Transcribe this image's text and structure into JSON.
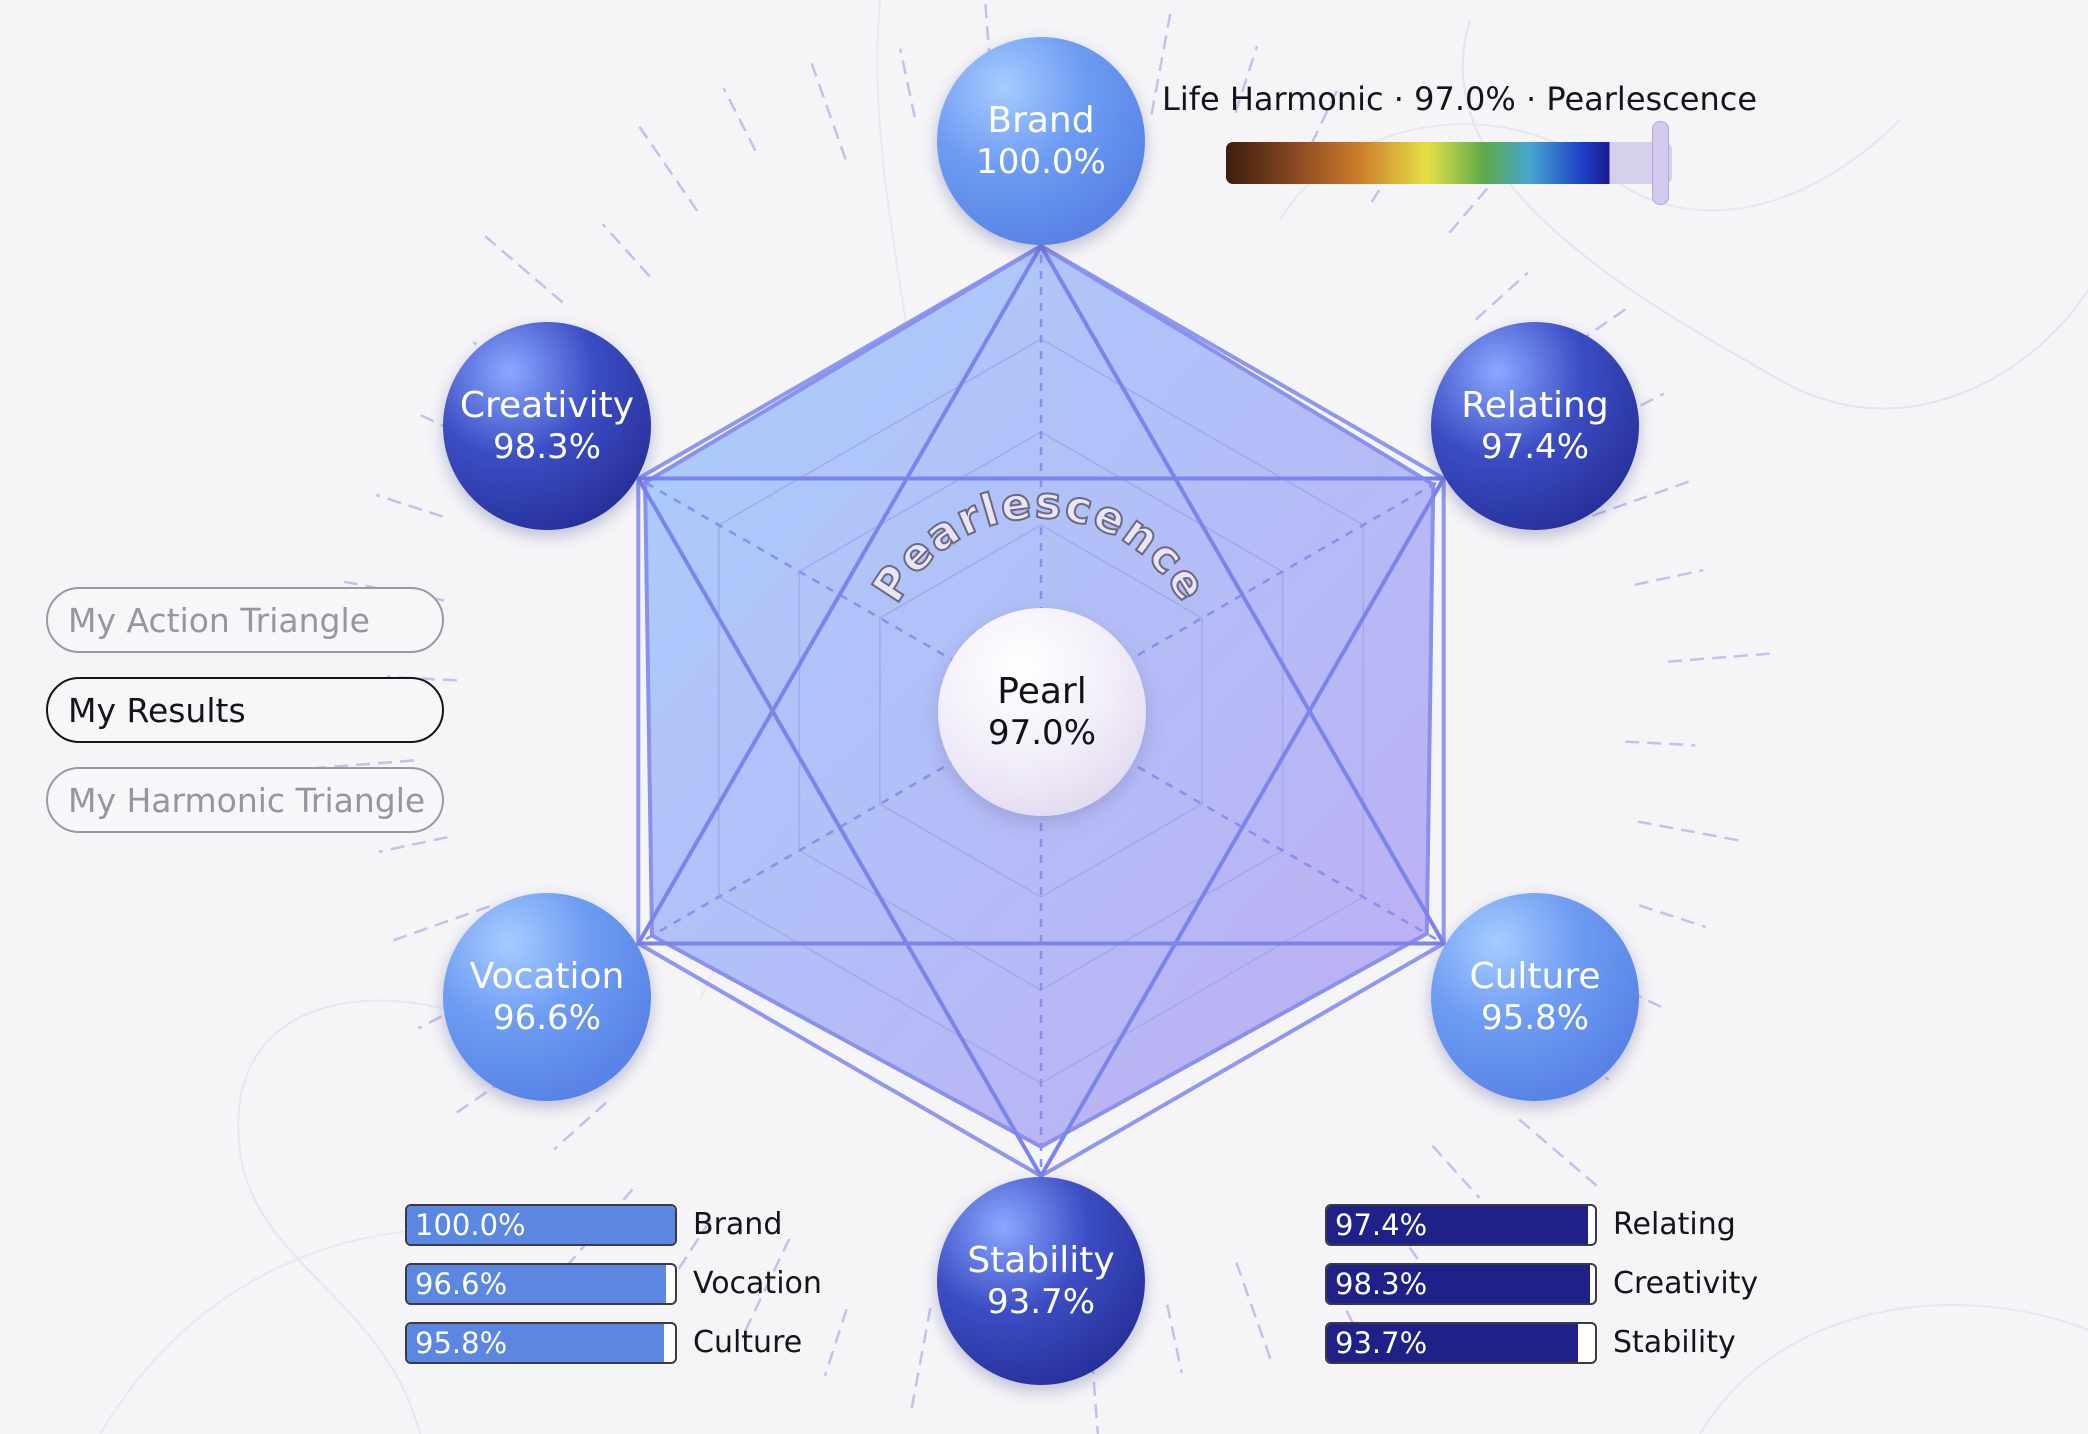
{
  "nav": [
    {
      "label": "My Action Triangle",
      "active": false
    },
    {
      "label": "My Results",
      "active": true
    },
    {
      "label": "My Harmonic Triangle",
      "active": false
    }
  ],
  "legend": {
    "title": "Life Harmonic · 97.0% · Pearlescence",
    "level_percent": 97.0
  },
  "center": {
    "arc_label": "Pearlescence",
    "label": "Pearl",
    "value": "97.0%"
  },
  "nodes": {
    "brand": {
      "label": "Brand",
      "value": "100.0%"
    },
    "relating": {
      "label": "Relating",
      "value": "97.4%"
    },
    "culture": {
      "label": "Culture",
      "value": "95.8%"
    },
    "stability": {
      "label": "Stability",
      "value": "93.7%"
    },
    "vocation": {
      "label": "Vocation",
      "value": "96.6%"
    },
    "creativity": {
      "label": "Creativity",
      "value": "98.3%"
    }
  },
  "bars_left": [
    {
      "value": "100.0%",
      "pct": 100.0,
      "label": "Brand"
    },
    {
      "value": "96.6%",
      "pct": 96.6,
      "label": "Vocation"
    },
    {
      "value": "95.8%",
      "pct": 95.8,
      "label": "Culture"
    }
  ],
  "bars_right": [
    {
      "value": "97.4%",
      "pct": 97.4,
      "label": "Relating"
    },
    {
      "value": "98.3%",
      "pct": 98.3,
      "label": "Creativity"
    },
    {
      "value": "93.7%",
      "pct": 93.7,
      "label": "Stability"
    }
  ],
  "colors": {
    "light_node": "#5b86e2",
    "dark_node": "#1f2189",
    "hexagon_fill": "#a6b6fa",
    "line": "#7c85ec"
  }
}
